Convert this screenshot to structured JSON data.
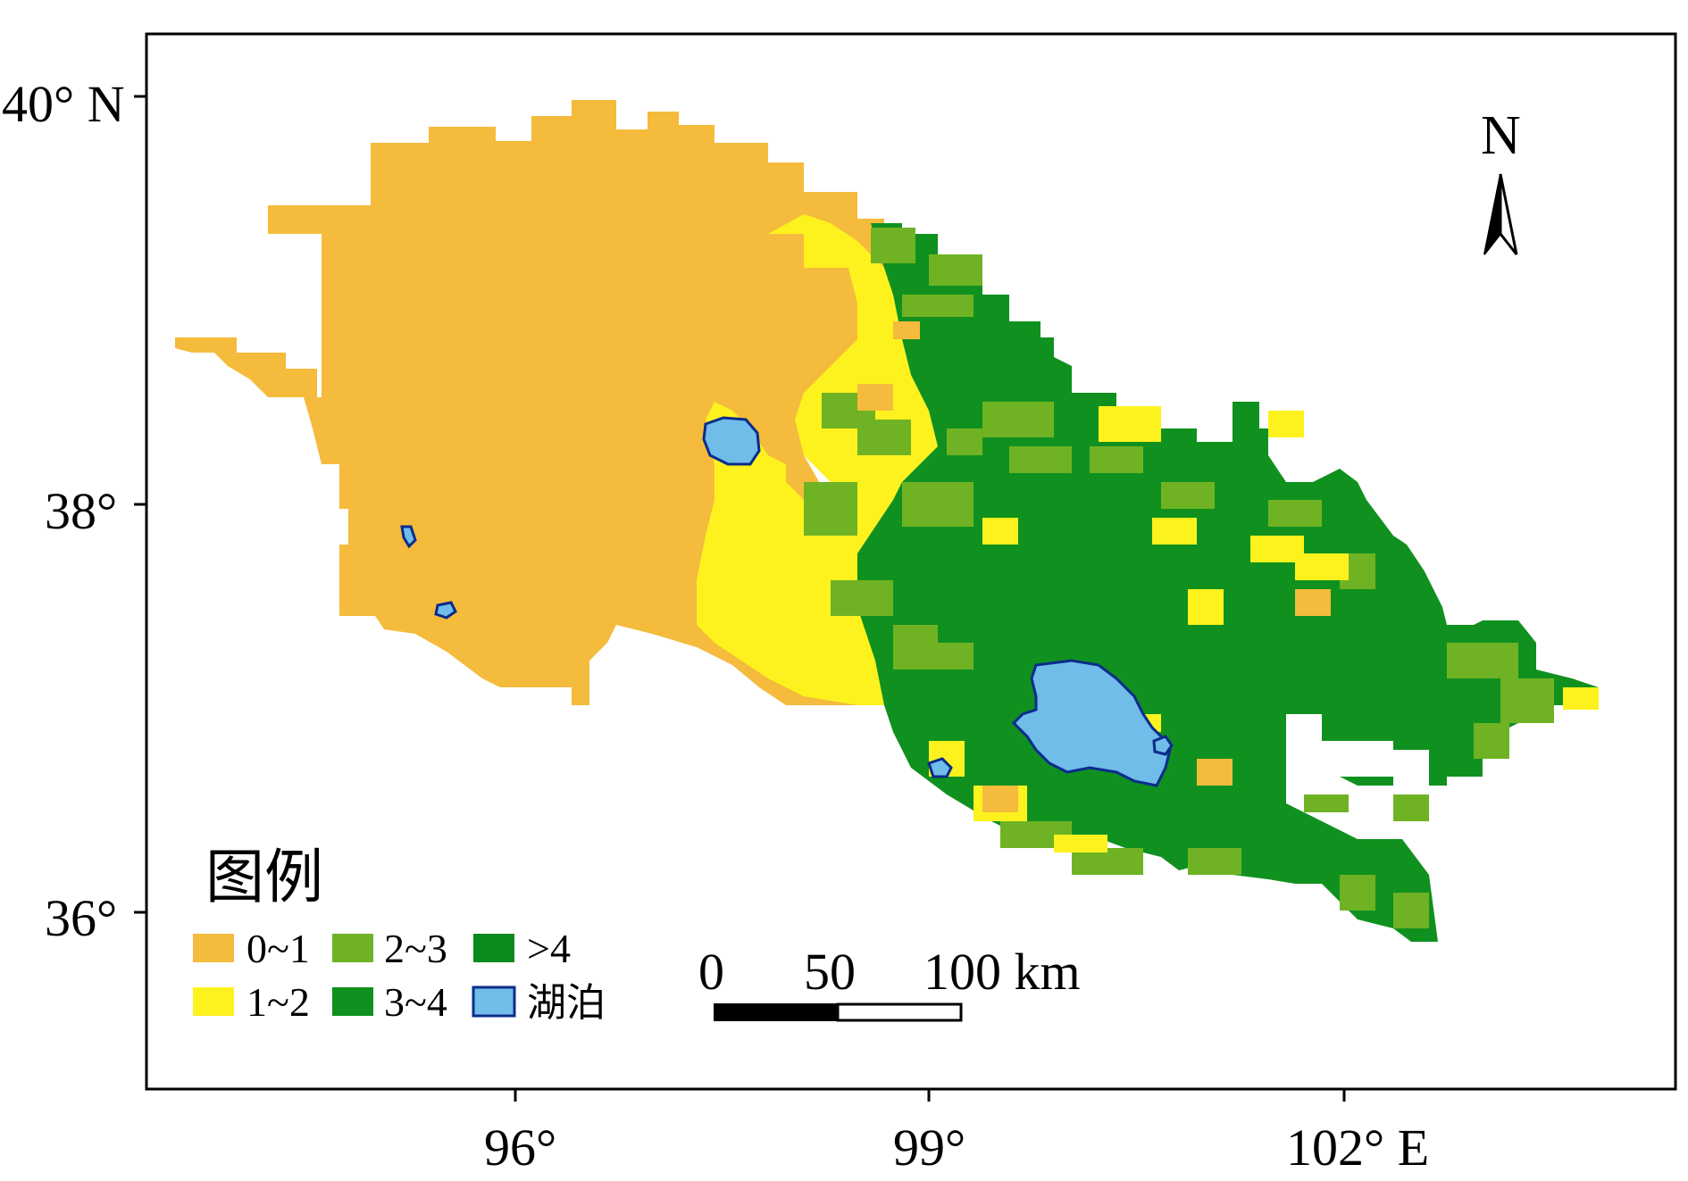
{
  "map": {
    "lat_ticks": [
      {
        "label": "40° N",
        "value": 40
      },
      {
        "label": "38°",
        "value": 38
      },
      {
        "label": "36°",
        "value": 36
      }
    ],
    "lon_ticks": [
      {
        "label": "96°",
        "value": 96
      },
      {
        "label": "99°",
        "value": 99
      },
      {
        "label": "102° E",
        "value": 102
      }
    ],
    "colors": {
      "c01": "#F4BB3C",
      "c12": "#FDF21E",
      "c23": "#6FB324",
      "c34": "#10911F",
      "c4plus": "#0B8A1D",
      "lake": "#6FBDE8",
      "lake_edge": "#0B2C8C"
    }
  },
  "legend": {
    "title": "图例",
    "items": [
      {
        "label": "0~1",
        "color": "#F4BB3C"
      },
      {
        "label": "1~2",
        "color": "#FDF21E"
      },
      {
        "label": "2~3",
        "color": "#6FB324"
      },
      {
        "label": "3~4",
        "color": "#10911F"
      },
      {
        "label": ">4",
        "color": "#0B8A1D"
      },
      {
        "label": "湖泊",
        "color": "#6FBDE8"
      }
    ]
  },
  "scalebar": {
    "labels": [
      "0",
      "50",
      "100 km"
    ]
  },
  "north_arrow": {
    "label": "N",
    "icon": "north-arrow-icon"
  }
}
